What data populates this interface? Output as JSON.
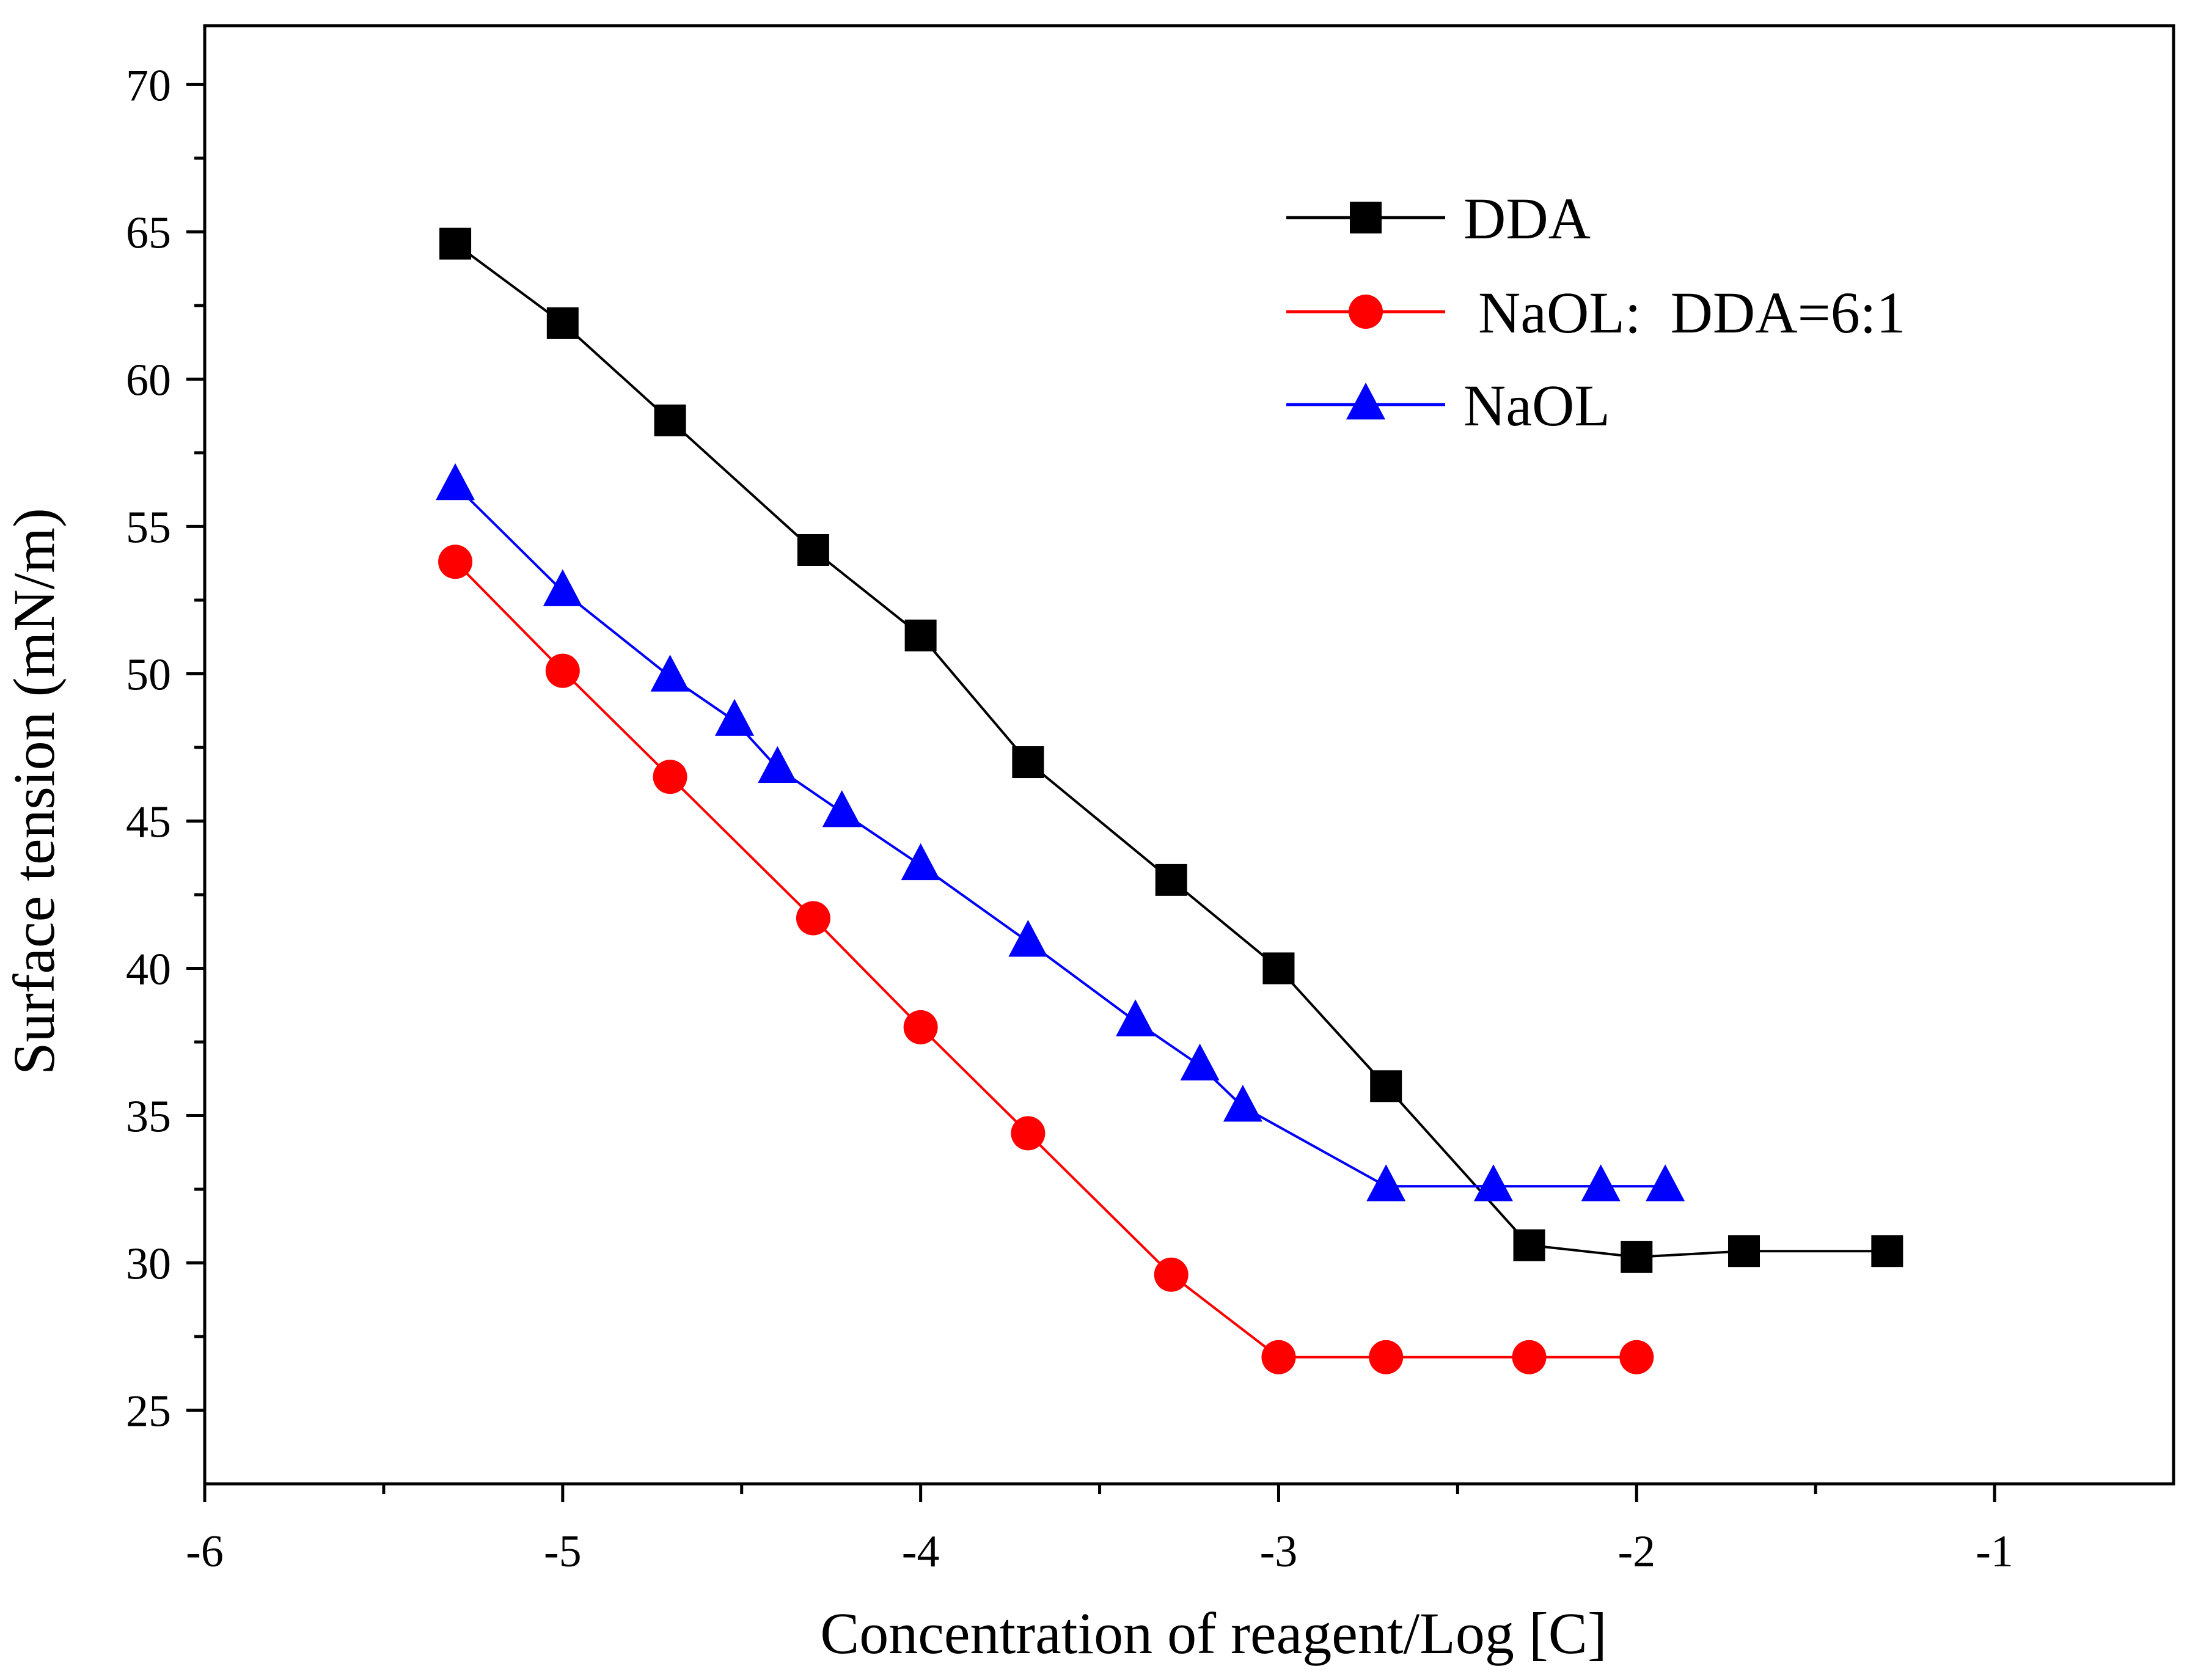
{
  "chart_data": {
    "type": "line",
    "title": "",
    "xlabel": "Concentration of reagent/Log [C]",
    "ylabel": "Surface tension (mN/m)",
    "xlim": [
      -6,
      -0.5
    ],
    "ylim": [
      22.5,
      72
    ],
    "x_ticks": [
      -6,
      -5,
      -4,
      -3,
      -2,
      -1
    ],
    "x_tick_labels": [
      "-6",
      "-5",
      "-4",
      "-3",
      "-2",
      "-1"
    ],
    "x_minor_ticks": [
      -5.5,
      -4.5,
      -3.5,
      -2.5,
      -1.5
    ],
    "y_ticks": [
      25,
      30,
      35,
      40,
      45,
      50,
      55,
      60,
      65,
      70
    ],
    "y_tick_labels": [
      "25",
      "30",
      "35",
      "40",
      "45",
      "50",
      "55",
      "60",
      "65",
      "70"
    ],
    "y_minor_ticks": [
      27.5,
      32.5,
      37.5,
      42.5,
      47.5,
      52.5,
      57.5,
      62.5,
      67.5
    ],
    "grid": false,
    "legend_position": "top-right",
    "series": [
      {
        "name": "DDA",
        "color": "#000000",
        "marker": "square",
        "x": [
          -5.3,
          -5.0,
          -4.7,
          -4.3,
          -4.0,
          -3.7,
          -3.3,
          -3.0,
          -2.7,
          -2.3,
          -2.0,
          -1.7,
          -1.3
        ],
        "y": [
          64.6,
          61.9,
          58.6,
          54.2,
          51.3,
          47.0,
          43.0,
          40.0,
          36.0,
          30.6,
          30.2,
          30.4,
          30.4
        ]
      },
      {
        "name": " NaOL:  DDA=6:1",
        "color": "#ff0000",
        "marker": "circle",
        "x": [
          -5.3,
          -5.0,
          -4.7,
          -4.3,
          -4.0,
          -3.7,
          -3.3,
          -3.0,
          -2.7,
          -2.3,
          -2.0
        ],
        "y": [
          53.8,
          50.1,
          46.5,
          41.7,
          38.0,
          34.4,
          29.6,
          26.8,
          26.8,
          26.8,
          26.8
        ]
      },
      {
        "name": "NaOL",
        "color": "#0000ff",
        "marker": "triangle",
        "x": [
          -5.3,
          -5.0,
          -4.7,
          -4.52,
          -4.4,
          -4.22,
          -4.0,
          -3.7,
          -3.4,
          -3.22,
          -3.1,
          -2.7,
          -2.4,
          -2.1,
          -1.92
        ],
        "y": [
          56.4,
          52.8,
          49.9,
          48.4,
          46.8,
          45.3,
          43.5,
          40.9,
          38.2,
          36.7,
          35.3,
          32.6,
          32.6,
          32.6,
          32.6
        ]
      }
    ]
  }
}
